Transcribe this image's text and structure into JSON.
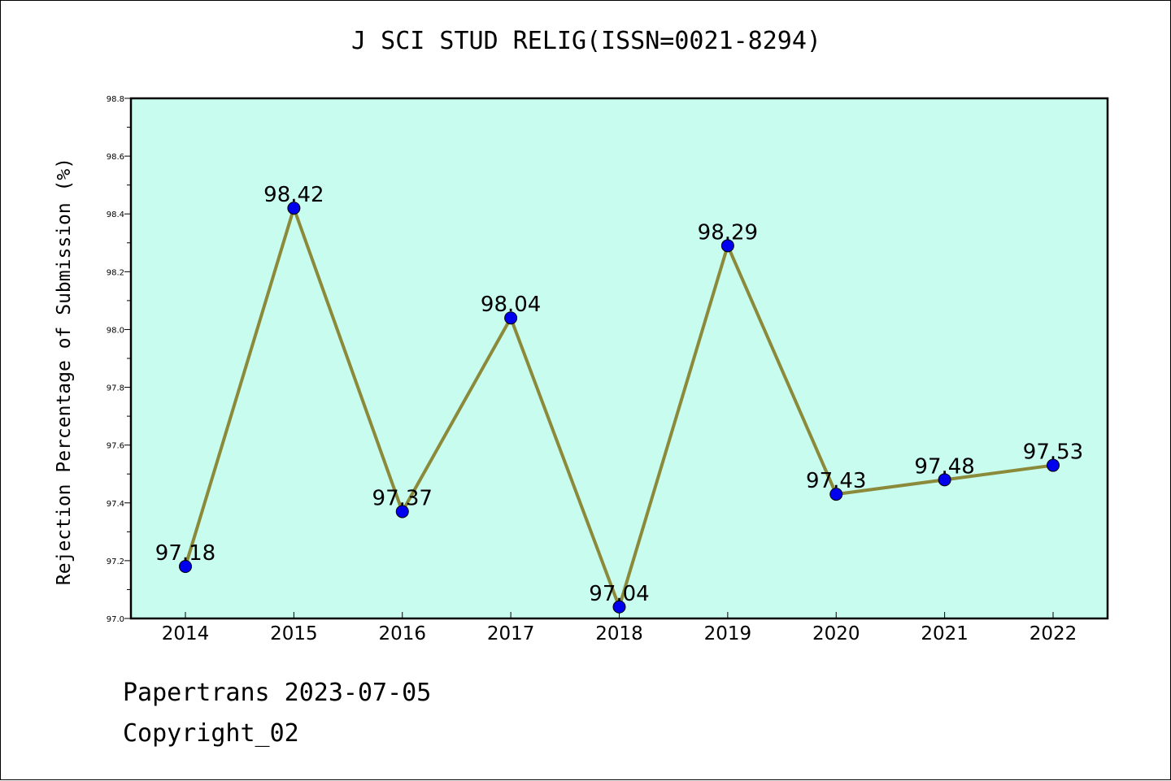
{
  "header": {
    "title": "J SCI STUD RELIG(ISSN=0021-8294)"
  },
  "footer": {
    "line1": "Papertrans 2023-07-05",
    "line2": "Copyright_02"
  },
  "colors": {
    "plot_background": "#c8fcee",
    "line": "#8b8a3a",
    "marker": "#0000ee"
  },
  "chart_data": {
    "type": "line",
    "title": "J SCI STUD RELIG(ISSN=0021-8294)",
    "xlabel": "",
    "ylabel": "Rejection Percentage of Submission (%)",
    "categories": [
      "2014",
      "2015",
      "2016",
      "2017",
      "2018",
      "2019",
      "2020",
      "2021",
      "2022"
    ],
    "values": [
      97.18,
      98.42,
      97.37,
      98.04,
      97.04,
      98.29,
      97.43,
      97.48,
      97.53
    ],
    "data_labels": [
      "97.18",
      "98.42",
      "97.37",
      "98.04",
      "97.04",
      "98.29",
      "97.43",
      "97.48",
      "97.53"
    ],
    "ylim": [
      97.0,
      98.8
    ],
    "yticks": [
      97.0,
      97.2,
      97.4,
      97.6,
      97.8,
      98.0,
      98.2,
      98.4,
      98.6,
      98.8
    ],
    "ytick_labels": [
      "97.0",
      "97.2",
      "97.4",
      "97.6",
      "97.8",
      "98.0",
      "98.2",
      "98.4",
      "98.6",
      "98.8"
    ],
    "grid": false,
    "legend": "none"
  }
}
